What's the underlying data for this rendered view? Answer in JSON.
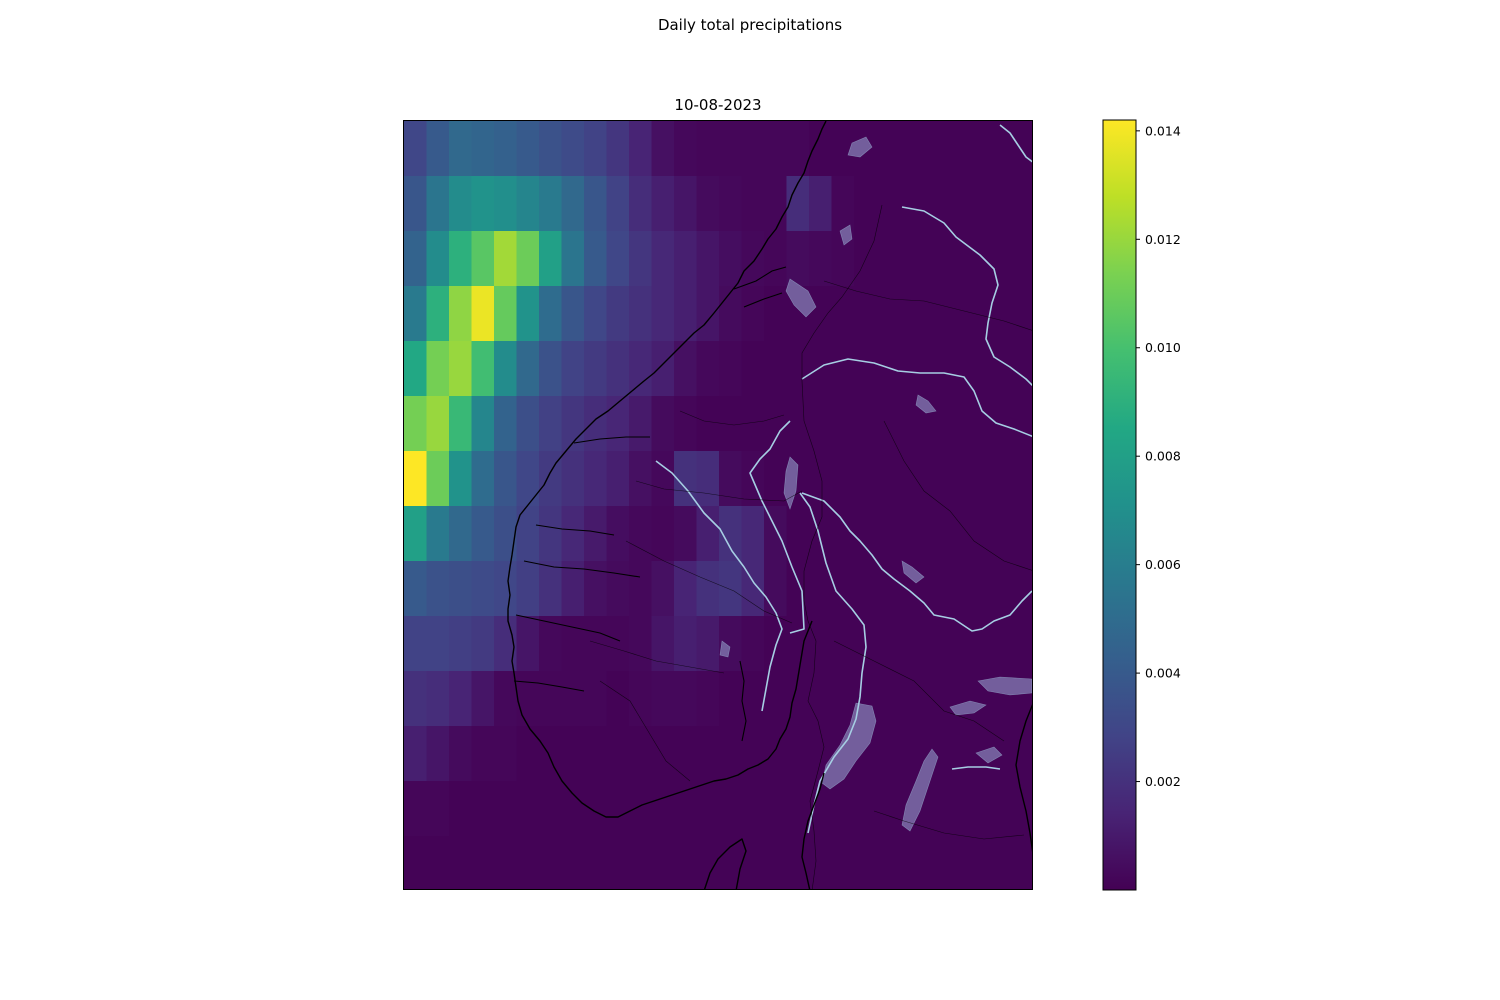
{
  "figure": {
    "suptitle": "Daily total precipitations",
    "date_title": "10-08-2023"
  },
  "chart_data": {
    "type": "heatmap",
    "title": "Daily total precipitations",
    "subtitle": "10-08-2023",
    "colormap": "viridis",
    "colorbar": {
      "vmin": 0.0,
      "vmax": 0.0142,
      "ticks": [
        0.002,
        0.004,
        0.006,
        0.008,
        0.01,
        0.012,
        0.014
      ],
      "tick_labels": [
        "0.002",
        "0.004",
        "0.006",
        "0.008",
        "0.010",
        "0.012",
        "0.014"
      ]
    },
    "legend_placement": "right",
    "field_rows_north_to_south": [
      [
        0.003,
        0.004,
        0.0048,
        0.0046,
        0.0044,
        0.004,
        0.0036,
        0.0032,
        0.0028,
        0.0022,
        0.0014,
        0.0006,
        0.0003,
        0.0002,
        0.0002,
        0.0002,
        0.0002,
        0.0002,
        0.0001,
        0.0001,
        0.0001,
        0.0001,
        0.0001,
        0.0001,
        0.0001,
        0.0001,
        0.0001,
        0.0001
      ],
      [
        0.0038,
        0.0055,
        0.0068,
        0.0072,
        0.007,
        0.0064,
        0.0058,
        0.0048,
        0.0038,
        0.0028,
        0.0018,
        0.0012,
        0.0008,
        0.0004,
        0.0003,
        0.0002,
        0.0002,
        0.0018,
        0.0012,
        0.0002,
        0.0001,
        0.0001,
        0.0001,
        0.0001,
        0.0001,
        0.0001,
        0.0001,
        0.0001
      ],
      [
        0.0045,
        0.0068,
        0.009,
        0.0105,
        0.0122,
        0.011,
        0.008,
        0.0055,
        0.004,
        0.003,
        0.0022,
        0.0016,
        0.0012,
        0.0008,
        0.0005,
        0.0003,
        0.0002,
        0.0004,
        0.0003,
        0.0002,
        0.0001,
        0.0001,
        0.0001,
        0.0001,
        0.0001,
        0.0001,
        0.0001,
        0.0001
      ],
      [
        0.0058,
        0.009,
        0.0118,
        0.0138,
        0.0108,
        0.0072,
        0.005,
        0.0038,
        0.003,
        0.0024,
        0.002,
        0.0016,
        0.0012,
        0.0008,
        0.0004,
        0.0002,
        0.0001,
        0.0001,
        0.0001,
        0.0001,
        0.0001,
        0.0001,
        0.0001,
        0.0001,
        0.0001,
        0.0001,
        0.0001,
        0.0001
      ],
      [
        0.0085,
        0.0112,
        0.012,
        0.0098,
        0.0068,
        0.0048,
        0.0036,
        0.0028,
        0.0024,
        0.002,
        0.0016,
        0.0012,
        0.0006,
        0.0003,
        0.0002,
        0.0001,
        0.0001,
        0.0001,
        0.0001,
        0.0001,
        0.0001,
        0.0001,
        0.0001,
        0.0001,
        0.0001,
        0.0001,
        0.0001,
        0.0001
      ],
      [
        0.0112,
        0.012,
        0.0095,
        0.0065,
        0.0045,
        0.0034,
        0.0027,
        0.0022,
        0.0018,
        0.0015,
        0.001,
        0.0004,
        0.0002,
        0.0001,
        0.0001,
        0.0001,
        0.0001,
        0.0001,
        0.0001,
        0.0001,
        0.0001,
        0.0001,
        0.0001,
        0.0001,
        0.0001,
        0.0001,
        0.0001,
        0.0001
      ],
      [
        0.0142,
        0.011,
        0.0072,
        0.005,
        0.0038,
        0.003,
        0.0024,
        0.002,
        0.0016,
        0.0012,
        0.0006,
        0.0003,
        0.002,
        0.0018,
        0.0004,
        0.0002,
        0.0001,
        0.0001,
        0.0001,
        0.0001,
        0.0001,
        0.0001,
        0.0001,
        0.0001,
        0.0001,
        0.0001,
        0.0001,
        0.0001
      ],
      [
        0.008,
        0.0058,
        0.0048,
        0.004,
        0.0034,
        0.0028,
        0.0022,
        0.0016,
        0.001,
        0.0005,
        0.0003,
        0.0002,
        0.0004,
        0.0012,
        0.002,
        0.0016,
        0.0004,
        0.0001,
        0.0001,
        0.0001,
        0.0001,
        0.0001,
        0.0001,
        0.0001,
        0.0001,
        0.0001,
        0.0001,
        0.0001
      ],
      [
        0.004,
        0.0036,
        0.0034,
        0.0032,
        0.003,
        0.0026,
        0.002,
        0.0012,
        0.0006,
        0.0004,
        0.0003,
        0.0006,
        0.0014,
        0.002,
        0.0022,
        0.0016,
        0.0004,
        0.0001,
        0.0001,
        0.0001,
        0.0001,
        0.0001,
        0.0001,
        0.0001,
        0.0001,
        0.0001,
        0.0001,
        0.0001
      ],
      [
        0.0028,
        0.0028,
        0.0026,
        0.0024,
        0.0018,
        0.0008,
        0.0003,
        0.0002,
        0.0002,
        0.0002,
        0.0003,
        0.0008,
        0.0012,
        0.001,
        0.0004,
        0.0002,
        0.0001,
        0.0001,
        0.0001,
        0.0001,
        0.0001,
        0.0001,
        0.0001,
        0.0001,
        0.0001,
        0.0001,
        0.0001,
        0.0001
      ],
      [
        0.002,
        0.0018,
        0.0014,
        0.0008,
        0.0003,
        0.0002,
        0.0002,
        0.0002,
        0.0002,
        0.0001,
        0.0002,
        0.0003,
        0.0003,
        0.0002,
        0.0001,
        0.0001,
        0.0001,
        0.0001,
        0.0001,
        0.0001,
        0.0001,
        0.0001,
        0.0001,
        0.0001,
        0.0001,
        0.0001,
        0.0001,
        0.0001
      ],
      [
        0.0012,
        0.0008,
        0.0004,
        0.0002,
        0.0002,
        0.0001,
        0.0001,
        0.0001,
        0.0001,
        0.0001,
        0.0001,
        0.0001,
        0.0001,
        0.0001,
        0.0001,
        0.0001,
        0.0001,
        0.0001,
        0.0001,
        0.0001,
        0.0001,
        0.0001,
        0.0001,
        0.0001,
        0.0001,
        0.0001,
        0.0001,
        0.0001
      ],
      [
        0.0002,
        0.0002,
        0.0001,
        0.0001,
        0.0001,
        0.0001,
        0.0001,
        0.0001,
        0.0001,
        0.0001,
        0.0001,
        0.0001,
        0.0001,
        0.0001,
        0.0001,
        0.0001,
        0.0001,
        0.0001,
        0.0001,
        0.0001,
        0.0001,
        0.0001,
        0.0001,
        0.0001,
        0.0001,
        0.0001,
        0.0001,
        0.0001
      ],
      [
        0.0001,
        0.0001,
        0.0001,
        0.0001,
        0.0001,
        0.0001,
        0.0001,
        0.0001,
        0.0001,
        0.0001,
        0.0001,
        0.0001,
        0.0001,
        0.0001,
        0.0001,
        0.0001,
        0.0001,
        0.0001,
        0.0001,
        0.0001,
        0.0001,
        0.0001,
        0.0001,
        0.0001,
        0.0001,
        0.0001,
        0.0001,
        0.0001
      ]
    ]
  },
  "map_style": {
    "coastline_color": "#000000",
    "border_color": "#000000",
    "river_color": "#a6cee3",
    "lake_color": "#7b6fa8"
  }
}
